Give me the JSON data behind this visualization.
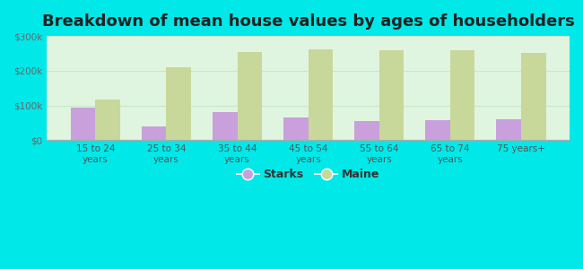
{
  "title": "Breakdown of mean house values by ages of householders",
  "categories": [
    "15 to 24\nyears",
    "25 to 34\nyears",
    "35 to 44\nyears",
    "45 to 54\nyears",
    "55 to 64\nyears",
    "65 to 74\nyears",
    "75 years+"
  ],
  "starks": [
    93000,
    40000,
    80000,
    65000,
    55000,
    57000,
    60000
  ],
  "maine": [
    118000,
    210000,
    255000,
    262000,
    258000,
    258000,
    252000
  ],
  "starks_color": "#c9a0dc",
  "maine_color": "#c8d89a",
  "background_outer": "#00e8e8",
  "background_plot": "#e0f5e0",
  "grid_color": "#d0ecd0",
  "ylim": [
    0,
    300000
  ],
  "yticks": [
    0,
    100000,
    200000,
    300000
  ],
  "ytick_labels": [
    "$0",
    "$100k",
    "$200k",
    "$300k"
  ],
  "legend_labels": [
    "Starks",
    "Maine"
  ],
  "title_fontsize": 13,
  "bar_width": 0.35,
  "figsize": [
    6.5,
    3.0
  ],
  "dpi": 100
}
